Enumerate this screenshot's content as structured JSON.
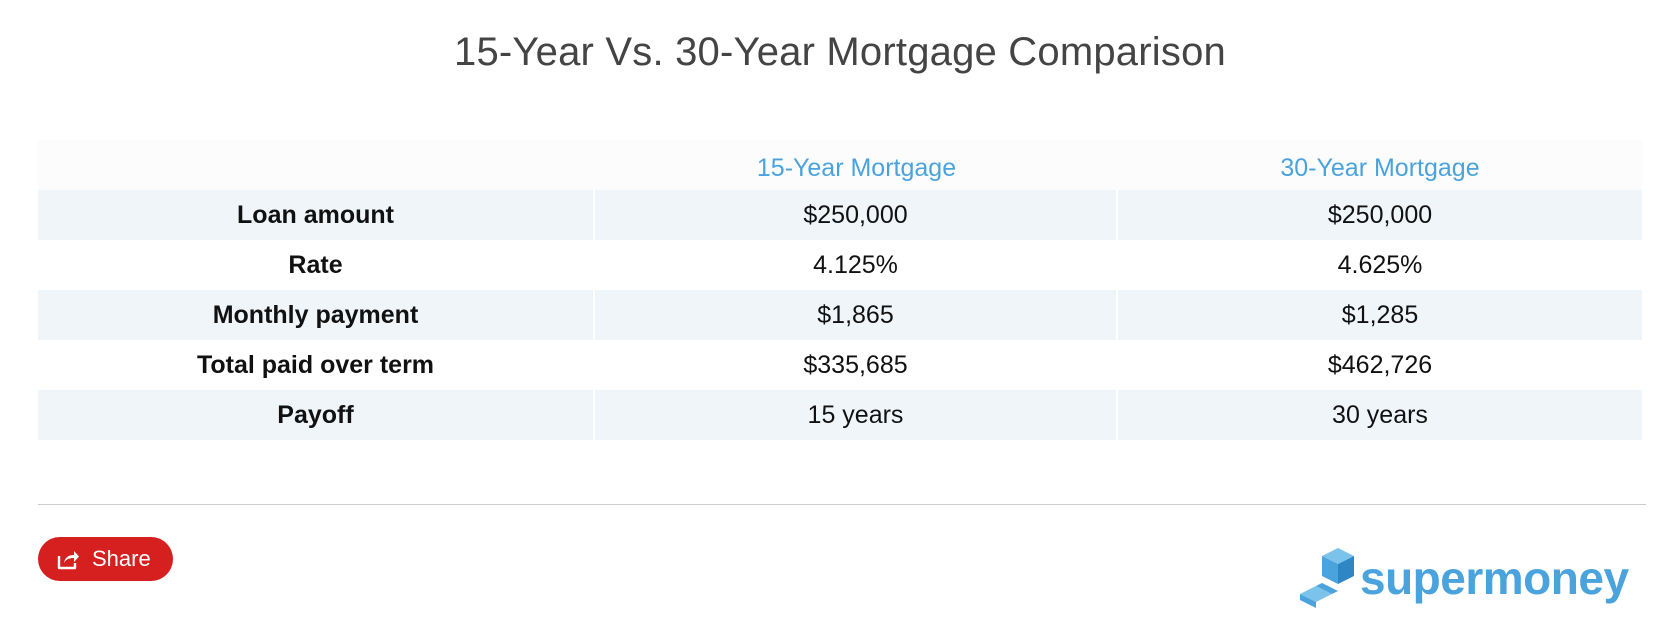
{
  "title": "15-Year Vs. 30-Year Mortgage Comparison",
  "colors": {
    "header_text": "#4aa3dc",
    "row_shade": "#f0f5fa",
    "share_button": "#d61f1f",
    "brand": "#4aa3dc"
  },
  "chart_data": {
    "type": "table",
    "columns": [
      "",
      "15-Year Mortgage",
      "30-Year Mortgage"
    ],
    "rows": [
      {
        "label": "Loan amount",
        "values": [
          "$250,000",
          "$250,000"
        ]
      },
      {
        "label": "Rate",
        "values": [
          "4.125%",
          "4.625%"
        ]
      },
      {
        "label": "Monthly payment",
        "values": [
          "$1,865",
          "$1,285"
        ]
      },
      {
        "label": "Total paid over term",
        "values": [
          "$335,685",
          "$462,726"
        ]
      },
      {
        "label": "Payoff",
        "values": [
          "15 years",
          "30 years"
        ]
      }
    ]
  },
  "footer": {
    "share_label": "Share",
    "share_icon": "share-icon",
    "logo_text": "supermoney",
    "logo_icon": "supermoney-logo-icon"
  }
}
